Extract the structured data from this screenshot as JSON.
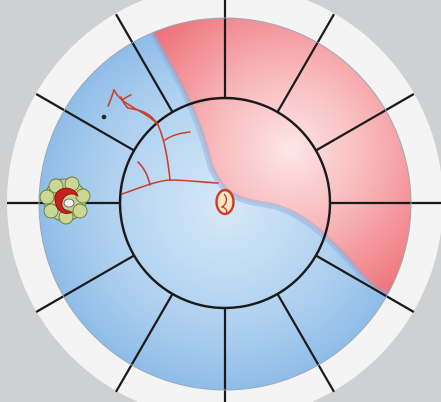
{
  "diagram": {
    "colors": {
      "background": "#cfd0d2",
      "outer_ring": "#f4f4f4",
      "blue_region": "#9cc6ec",
      "blue_light": "#cfe4f7",
      "red_region": "#f07e84",
      "red_light": "#fbd6d8",
      "vessel": "#c8402e",
      "lines": "#1a1a1a",
      "nest_green": "#b9c77a",
      "nest_red": "#c8201c"
    },
    "spokes": {
      "count": 12
    },
    "central_point": {
      "icon": "optic-disc-icon"
    },
    "cell_nest": {
      "icon": "cell-cluster-icon"
    },
    "dot": {
      "icon": "dot-marker-icon"
    }
  }
}
